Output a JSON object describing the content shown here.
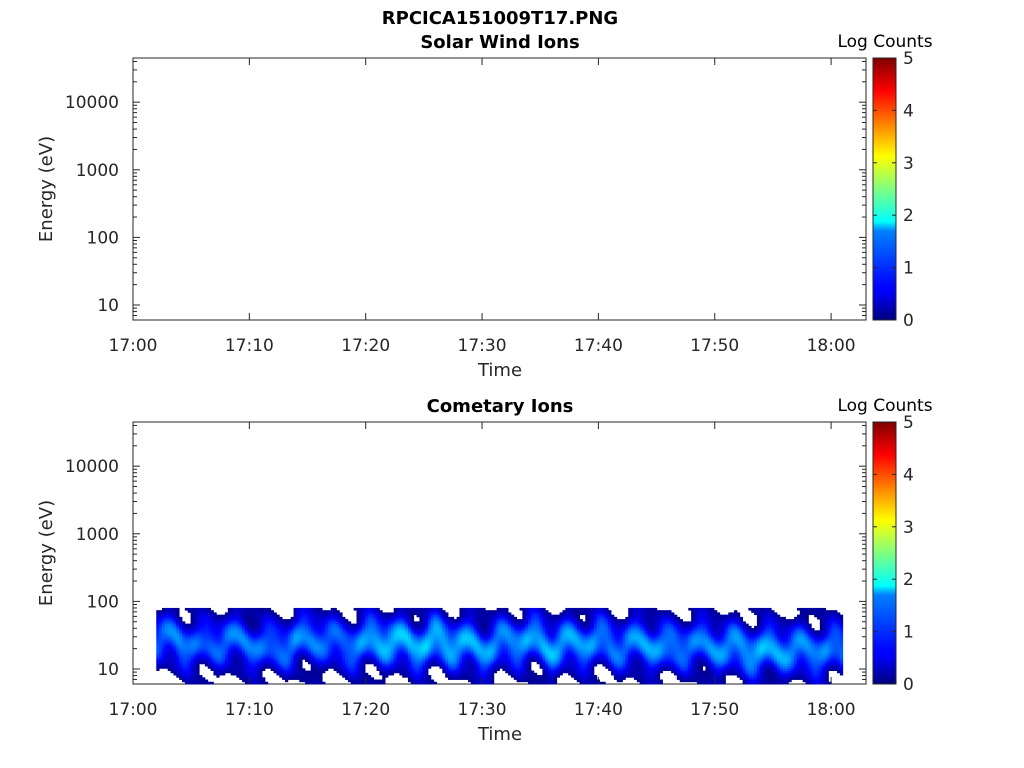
{
  "figure": {
    "title": "RPCICA151009T17.PNG"
  },
  "chart_data": [
    {
      "type": "heatmap",
      "title": "Solar Wind Ions",
      "xlabel": "Time",
      "ylabel": "Energy (eV)",
      "x_ticks": [
        "17:00",
        "17:10",
        "17:20",
        "17:30",
        "17:40",
        "17:50",
        "18:00"
      ],
      "xlim": [
        "17:00",
        "18:03"
      ],
      "y_ticks": [
        10,
        100,
        1000,
        10000
      ],
      "y_tick_labels": [
        "10",
        "100",
        "1000",
        "10000"
      ],
      "ylim": [
        6,
        45000
      ],
      "y_scale": "log",
      "colorbar": {
        "label": "Log Counts",
        "range": [
          0,
          5
        ],
        "ticks": [
          "0",
          "1",
          "2",
          "3",
          "4",
          "5"
        ],
        "colormap": "jet"
      },
      "data": []
    },
    {
      "type": "heatmap",
      "title": "Cometary Ions",
      "xlabel": "Time",
      "ylabel": "Energy (eV)",
      "x_ticks": [
        "17:00",
        "17:10",
        "17:20",
        "17:30",
        "17:40",
        "17:50",
        "18:00"
      ],
      "xlim": [
        "17:00",
        "18:03"
      ],
      "y_ticks": [
        10,
        100,
        1000,
        10000
      ],
      "y_tick_labels": [
        "10",
        "100",
        "1000",
        "10000"
      ],
      "ylim": [
        6,
        45000
      ],
      "y_scale": "log",
      "colorbar": {
        "label": "Log Counts",
        "range": [
          0,
          5
        ],
        "ticks": [
          "0",
          "1",
          "2",
          "3",
          "4",
          "5"
        ],
        "colormap": "jet"
      },
      "data_extent": {
        "time": [
          "17:02",
          "18:01"
        ],
        "energy_ev": [
          6,
          80
        ]
      },
      "columns": [
        {
          "t": "17:02",
          "peak_ev": 30,
          "peak_log": 1.1
        },
        {
          "t": "17:04",
          "peak_ev": 25,
          "peak_log": 1.3
        },
        {
          "t": "17:06",
          "peak_ev": 22,
          "peak_log": 1.0
        },
        {
          "t": "17:08",
          "peak_ev": 28,
          "peak_log": 1.2
        },
        {
          "t": "17:10",
          "peak_ev": 24,
          "peak_log": 1.2
        },
        {
          "t": "17:12",
          "peak_ev": 20,
          "peak_log": 1.1
        },
        {
          "t": "17:14",
          "peak_ev": 26,
          "peak_log": 1.3
        },
        {
          "t": "17:16",
          "peak_ev": 30,
          "peak_log": 1.2
        },
        {
          "t": "17:18",
          "peak_ev": 22,
          "peak_log": 1.1
        },
        {
          "t": "17:20",
          "peak_ev": 25,
          "peak_log": 1.4
        },
        {
          "t": "17:22",
          "peak_ev": 28,
          "peak_log": 1.6
        },
        {
          "t": "17:24",
          "peak_ev": 22,
          "peak_log": 1.5
        },
        {
          "t": "17:26",
          "peak_ev": 26,
          "peak_log": 1.6
        },
        {
          "t": "17:28",
          "peak_ev": 24,
          "peak_log": 1.5
        },
        {
          "t": "17:30",
          "peak_ev": 20,
          "peak_log": 1.4
        },
        {
          "t": "17:32",
          "peak_ev": 25,
          "peak_log": 1.3
        },
        {
          "t": "17:34",
          "peak_ev": 28,
          "peak_log": 1.4
        },
        {
          "t": "17:36",
          "peak_ev": 22,
          "peak_log": 1.5
        },
        {
          "t": "17:38",
          "peak_ev": 24,
          "peak_log": 1.4
        },
        {
          "t": "17:40",
          "peak_ev": 26,
          "peak_log": 1.3
        },
        {
          "t": "17:42",
          "peak_ev": 22,
          "peak_log": 1.2
        },
        {
          "t": "17:44",
          "peak_ev": 25,
          "peak_log": 1.4
        },
        {
          "t": "17:46",
          "peak_ev": 20,
          "peak_log": 1.3
        },
        {
          "t": "17:48",
          "peak_ev": 24,
          "peak_log": 1.2
        },
        {
          "t": "17:50",
          "peak_ev": 22,
          "peak_log": 1.3
        },
        {
          "t": "17:52",
          "peak_ev": 20,
          "peak_log": 1.4
        },
        {
          "t": "17:54",
          "peak_ev": 18,
          "peak_log": 1.5
        },
        {
          "t": "17:56",
          "peak_ev": 20,
          "peak_log": 1.4
        },
        {
          "t": "17:58",
          "peak_ev": 18,
          "peak_log": 1.3
        },
        {
          "t": "18:00",
          "peak_ev": 20,
          "peak_log": 1.2
        }
      ]
    }
  ]
}
